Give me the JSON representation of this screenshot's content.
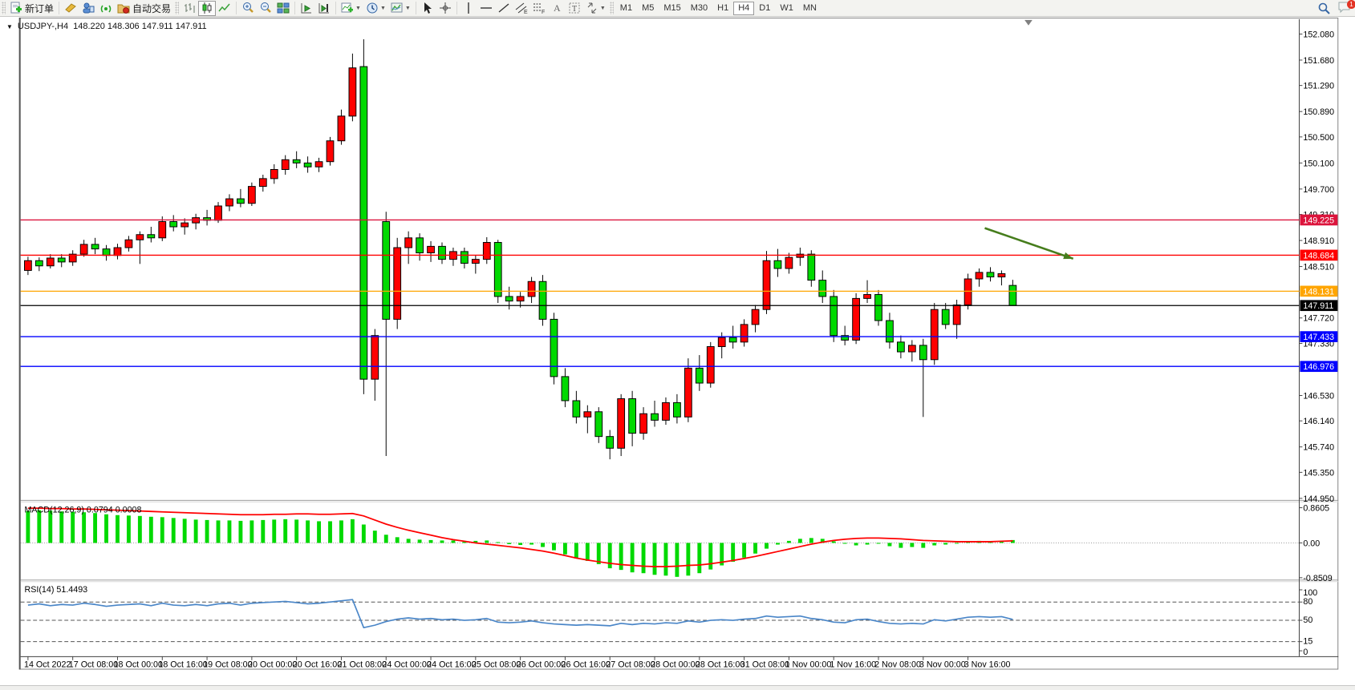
{
  "toolbar": {
    "new_order_label": "新订单",
    "autotrading_label": "自动交易",
    "timeframes": [
      "M1",
      "M5",
      "M15",
      "M30",
      "H1",
      "H4",
      "D1",
      "W1",
      "MN"
    ],
    "active_timeframe": "H4",
    "chat_badge": "1"
  },
  "title": {
    "collapse_glyph": "▼",
    "symbol": "USDJPY-,H4",
    "ohlc": "148.220 148.306 147.911 147.911"
  },
  "colors": {
    "bull": "#ff0000",
    "bear": "#00d900",
    "wick": "#000000",
    "macd_hist": "#00d900",
    "macd_signal": "#ff0000",
    "rsi_line": "#4a86c8",
    "arrow": "#467d1c"
  },
  "chart_data": [
    {
      "type": "candlestick",
      "title": "USDJPY-,H4",
      "current_ohlc": "148.220 148.306 147.911 147.911",
      "y_ticks": [
        "152.080",
        "151.680",
        "151.290",
        "150.890",
        "150.500",
        "150.100",
        "149.700",
        "149.310",
        "148.910",
        "148.510",
        "147.720",
        "147.330",
        "146.530",
        "146.140",
        "145.740",
        "145.350",
        "144.950"
      ],
      "ylim": [
        144.93,
        152.31
      ],
      "x_labels": [
        "14 Oct 2022",
        "17 Oct 08:00",
        "18 Oct 00:00",
        "18 Oct 16:00",
        "19 Oct 08:00",
        "20 Oct 00:00",
        "20 Oct 16:00",
        "21 Oct 08:00",
        "24 Oct 00:00",
        "24 Oct 16:00",
        "25 Oct 08:00",
        "26 Oct 00:00",
        "26 Oct 16:00",
        "27 Oct 08:00",
        "28 Oct 00:00",
        "28 Oct 16:00",
        "31 Oct 08:00",
        "1 Nov 00:00",
        "1 Nov 16:00",
        "2 Nov 08:00",
        "3 Nov 00:00",
        "3 Nov 16:00"
      ],
      "bars_per_label": 4,
      "candles": [
        [
          148.45,
          148.66,
          148.38,
          148.6
        ],
        [
          148.6,
          148.65,
          148.44,
          148.52
        ],
        [
          148.52,
          148.7,
          148.48,
          148.64
        ],
        [
          148.64,
          148.7,
          148.5,
          148.58
        ],
        [
          148.58,
          148.76,
          148.52,
          148.7
        ],
        [
          148.7,
          148.92,
          148.66,
          148.85
        ],
        [
          148.85,
          148.95,
          148.7,
          148.78
        ],
        [
          148.78,
          148.84,
          148.6,
          148.68
        ],
        [
          148.68,
          148.86,
          148.62,
          148.8
        ],
        [
          148.8,
          148.98,
          148.74,
          148.92
        ],
        [
          148.92,
          149.05,
          148.55,
          149.0
        ],
        [
          149.0,
          149.12,
          148.88,
          148.95
        ],
        [
          148.95,
          149.28,
          148.9,
          149.2
        ],
        [
          149.2,
          149.3,
          149.05,
          149.12
        ],
        [
          149.12,
          149.25,
          149.0,
          149.18
        ],
        [
          149.18,
          149.32,
          149.08,
          149.26
        ],
        [
          149.26,
          149.38,
          149.14,
          149.22
        ],
        [
          149.22,
          149.5,
          149.18,
          149.44
        ],
        [
          149.44,
          149.62,
          149.36,
          149.55
        ],
        [
          149.55,
          149.7,
          149.42,
          149.48
        ],
        [
          149.48,
          149.8,
          149.44,
          149.74
        ],
        [
          149.74,
          149.92,
          149.66,
          149.86
        ],
        [
          149.86,
          150.08,
          149.78,
          150.0
        ],
        [
          150.0,
          150.22,
          149.92,
          150.15
        ],
        [
          150.15,
          150.28,
          150.02,
          150.1
        ],
        [
          150.1,
          150.2,
          149.95,
          150.04
        ],
        [
          150.04,
          150.18,
          149.96,
          150.12
        ],
        [
          150.12,
          150.5,
          150.06,
          150.44
        ],
        [
          150.44,
          150.92,
          150.38,
          150.82
        ],
        [
          150.82,
          151.78,
          150.74,
          151.56
        ],
        [
          151.58,
          152.0,
          146.55,
          146.78
        ],
        [
          146.78,
          147.55,
          146.45,
          147.45
        ],
        [
          149.2,
          149.35,
          145.6,
          147.7
        ],
        [
          147.7,
          148.95,
          147.55,
          148.8
        ],
        [
          148.8,
          149.05,
          148.55,
          148.95
        ],
        [
          148.95,
          149.02,
          148.6,
          148.72
        ],
        [
          148.72,
          148.9,
          148.58,
          148.82
        ],
        [
          148.82,
          148.88,
          148.55,
          148.62
        ],
        [
          148.62,
          148.8,
          148.52,
          148.74
        ],
        [
          148.74,
          148.8,
          148.48,
          148.56
        ],
        [
          148.56,
          148.68,
          148.4,
          148.62
        ],
        [
          148.62,
          148.96,
          148.55,
          148.88
        ],
        [
          148.88,
          148.92,
          147.95,
          148.05
        ],
        [
          148.05,
          148.2,
          147.85,
          147.98
        ],
        [
          147.98,
          148.12,
          147.88,
          148.05
        ],
        [
          148.05,
          148.35,
          147.95,
          148.28
        ],
        [
          148.28,
          148.38,
          147.6,
          147.7
        ],
        [
          147.7,
          147.8,
          146.7,
          146.82
        ],
        [
          146.82,
          146.95,
          146.35,
          146.45
        ],
        [
          146.45,
          146.6,
          146.1,
          146.2
        ],
        [
          146.2,
          146.38,
          145.95,
          146.28
        ],
        [
          146.28,
          146.35,
          145.8,
          145.9
        ],
        [
          145.9,
          146.0,
          145.55,
          145.72
        ],
        [
          145.72,
          146.55,
          145.6,
          146.48
        ],
        [
          146.48,
          146.6,
          145.75,
          145.95
        ],
        [
          145.95,
          146.35,
          145.85,
          146.25
        ],
        [
          146.25,
          146.45,
          146.05,
          146.15
        ],
        [
          146.15,
          146.5,
          146.08,
          146.42
        ],
        [
          146.42,
          146.55,
          146.1,
          146.2
        ],
        [
          146.2,
          147.1,
          146.12,
          146.95
        ],
        [
          146.95,
          147.15,
          146.6,
          146.72
        ],
        [
          146.72,
          147.35,
          146.65,
          147.28
        ],
        [
          147.28,
          147.5,
          147.1,
          147.42
        ],
        [
          147.42,
          147.6,
          147.25,
          147.35
        ],
        [
          147.35,
          147.7,
          147.28,
          147.62
        ],
        [
          147.62,
          147.92,
          147.5,
          147.85
        ],
        [
          147.85,
          148.75,
          147.78,
          148.6
        ],
        [
          148.6,
          148.78,
          148.35,
          148.48
        ],
        [
          148.48,
          148.72,
          148.4,
          148.65
        ],
        [
          148.65,
          148.8,
          148.52,
          148.7
        ],
        [
          148.7,
          148.76,
          148.2,
          148.3
        ],
        [
          148.3,
          148.45,
          147.95,
          148.05
        ],
        [
          148.05,
          148.15,
          147.35,
          147.45
        ],
        [
          147.45,
          147.6,
          147.3,
          147.38
        ],
        [
          147.38,
          148.1,
          147.32,
          148.02
        ],
        [
          148.02,
          148.3,
          147.95,
          148.08
        ],
        [
          148.08,
          148.15,
          147.6,
          147.68
        ],
        [
          147.68,
          147.8,
          147.25,
          147.35
        ],
        [
          147.35,
          147.45,
          147.1,
          147.2
        ],
        [
          147.2,
          147.38,
          147.05,
          147.3
        ],
        [
          147.3,
          147.4,
          146.2,
          147.08
        ],
        [
          147.08,
          147.95,
          147.0,
          147.85
        ],
        [
          147.85,
          147.95,
          147.55,
          147.62
        ],
        [
          147.62,
          148.0,
          147.4,
          147.92
        ],
        [
          147.92,
          148.4,
          147.85,
          148.32
        ],
        [
          148.32,
          148.48,
          148.2,
          148.42
        ],
        [
          148.42,
          148.5,
          148.28,
          148.35
        ],
        [
          148.35,
          148.45,
          148.22,
          148.4
        ],
        [
          148.22,
          148.306,
          147.911,
          147.911
        ]
      ],
      "price_lines": [
        {
          "price": 149.225,
          "label": "149.225",
          "color": "#dc143c"
        },
        {
          "price": 148.684,
          "label": "148.684",
          "color": "#ff0000"
        },
        {
          "price": 148.131,
          "label": "148.131",
          "color": "#ffa500"
        },
        {
          "price": 147.911,
          "label": "147.911",
          "color": "#000000"
        },
        {
          "price": 147.433,
          "label": "147.433",
          "color": "#0000ff"
        },
        {
          "price": 146.976,
          "label": "146.976",
          "color": "#0000ff"
        }
      ],
      "annotation": {
        "type": "arrow",
        "color": "#467d1c",
        "from": {
          "index": 85.5,
          "price": 149.1
        },
        "to": {
          "index": 93.4,
          "price": 148.63
        }
      }
    },
    {
      "type": "bar",
      "name": "MACD",
      "label": "MACD(12,26,9) 0.0794 0.0008",
      "y_ticks": [
        "0.8605",
        "0.00",
        "-0.8509"
      ],
      "ylim": [
        -0.95,
        1.0
      ],
      "histogram": [
        0.78,
        0.8,
        0.79,
        0.77,
        0.76,
        0.75,
        0.73,
        0.7,
        0.68,
        0.67,
        0.66,
        0.64,
        0.63,
        0.61,
        0.59,
        0.57,
        0.56,
        0.55,
        0.55,
        0.54,
        0.55,
        0.56,
        0.57,
        0.58,
        0.57,
        0.55,
        0.53,
        0.53,
        0.55,
        0.58,
        0.45,
        0.3,
        0.2,
        0.14,
        0.1,
        0.08,
        0.07,
        0.06,
        0.06,
        0.05,
        0.05,
        0.06,
        0.02,
        -0.03,
        -0.05,
        -0.04,
        -0.1,
        -0.18,
        -0.28,
        -0.38,
        -0.44,
        -0.52,
        -0.62,
        -0.66,
        -0.72,
        -0.74,
        -0.78,
        -0.8,
        -0.83,
        -0.8,
        -0.74,
        -0.65,
        -0.55,
        -0.46,
        -0.36,
        -0.26,
        -0.14,
        -0.04,
        0.05,
        0.1,
        0.12,
        0.1,
        0.04,
        -0.02,
        -0.06,
        -0.04,
        -0.02,
        -0.08,
        -0.12,
        -0.1,
        -0.12,
        -0.06,
        -0.04,
        0.0,
        0.03,
        0.05,
        0.04,
        0.04,
        0.07
      ],
      "signal": [
        0.85,
        0.85,
        0.84,
        0.84,
        0.83,
        0.83,
        0.82,
        0.81,
        0.8,
        0.79,
        0.78,
        0.77,
        0.76,
        0.75,
        0.74,
        0.73,
        0.72,
        0.71,
        0.7,
        0.69,
        0.69,
        0.69,
        0.7,
        0.7,
        0.71,
        0.71,
        0.7,
        0.7,
        0.71,
        0.72,
        0.66,
        0.56,
        0.46,
        0.38,
        0.31,
        0.25,
        0.19,
        0.13,
        0.08,
        0.04,
        0.0,
        -0.03,
        -0.06,
        -0.09,
        -0.12,
        -0.16,
        -0.2,
        -0.25,
        -0.31,
        -0.37,
        -0.42,
        -0.46,
        -0.5,
        -0.53,
        -0.55,
        -0.57,
        -0.58,
        -0.58,
        -0.57,
        -0.55,
        -0.54,
        -0.51,
        -0.47,
        -0.43,
        -0.38,
        -0.33,
        -0.27,
        -0.21,
        -0.15,
        -0.09,
        -0.03,
        0.02,
        0.06,
        0.09,
        0.11,
        0.12,
        0.12,
        0.11,
        0.1,
        0.08,
        0.06,
        0.05,
        0.04,
        0.03,
        0.03,
        0.03,
        0.03,
        0.04,
        0.05
      ]
    },
    {
      "type": "line",
      "name": "RSI",
      "label": "RSI(14) 51.4493",
      "y_ticks": [
        "100",
        "80",
        "50",
        "15",
        "0"
      ],
      "levels": [
        80,
        50,
        15
      ],
      "ylim": [
        0,
        100
      ],
      "values": [
        75,
        77,
        74,
        76,
        75,
        78,
        76,
        73,
        75,
        76,
        77,
        74,
        78,
        75,
        74,
        76,
        74,
        77,
        78,
        75,
        78,
        79,
        80,
        81,
        79,
        77,
        78,
        80,
        82,
        84,
        38,
        42,
        48,
        52,
        54,
        52,
        53,
        51,
        52,
        50,
        51,
        53,
        47,
        46,
        47,
        49,
        46,
        44,
        43,
        42,
        43,
        42,
        41,
        45,
        43,
        45,
        44,
        46,
        45,
        49,
        47,
        50,
        51,
        50,
        52,
        53,
        57,
        55,
        56,
        57,
        53,
        51,
        47,
        46,
        51,
        52,
        48,
        45,
        44,
        45,
        44,
        51,
        49,
        52,
        55,
        56,
        55,
        56,
        51.4
      ]
    }
  ]
}
